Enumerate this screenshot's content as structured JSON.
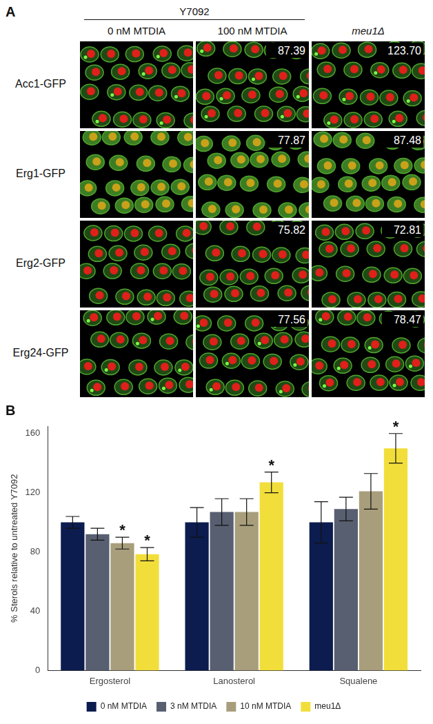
{
  "panel_a": {
    "label": "A",
    "group_header": "Y7092",
    "columns": [
      "0 nM MTDIA",
      "100 nM MTDIA",
      "meu1Δ"
    ],
    "rows": [
      {
        "label": "Acc1-GFP",
        "values": [
          null,
          "87.39",
          "123.70"
        ]
      },
      {
        "label": "Erg1-GFP",
        "values": [
          null,
          "77.87",
          "87.48"
        ]
      },
      {
        "label": "Erg2-GFP",
        "values": [
          null,
          "75.82",
          "72.81"
        ]
      },
      {
        "label": "Erg24-GFP",
        "values": [
          null,
          "77.56",
          "78.47"
        ]
      }
    ]
  },
  "chart_data": {
    "type": "bar",
    "panel_label": "B",
    "y_label": "% Sterols relative to untreated Y7092",
    "categories": [
      "Ergosterol",
      "Lanosterol",
      "Squalene"
    ],
    "series": [
      {
        "name": "0 nM MTDIA",
        "color": "#0c1c4e",
        "values": [
          100,
          100,
          100
        ],
        "errors": [
          4,
          10,
          14
        ]
      },
      {
        "name": "3 nM MTDIA",
        "color": "#585f70",
        "values": [
          92,
          107,
          109
        ],
        "errors": [
          4,
          9,
          8
        ]
      },
      {
        "name": "10 nM MTDIA",
        "color": "#a89e7c",
        "values": [
          86,
          107,
          121
        ],
        "errors": [
          4,
          9,
          12
        ]
      },
      {
        "name": "meu1Δ",
        "color": "#f2de3a",
        "values": [
          78.5,
          127,
          150
        ],
        "errors": [
          4.5,
          7,
          10
        ]
      }
    ],
    "annotations": [
      {
        "category": "Ergosterol",
        "series": "10 nM MTDIA",
        "text": "*"
      },
      {
        "category": "Ergosterol",
        "series": "meu1Δ",
        "text": "*"
      },
      {
        "category": "Lanosterol",
        "series": "meu1Δ",
        "text": "*"
      },
      {
        "category": "Squalene",
        "series": "meu1Δ",
        "text": "*"
      }
    ],
    "ylim": [
      0,
      165
    ],
    "yticks": [
      0,
      40,
      80,
      120,
      160
    ],
    "grid": false,
    "legend": "bottom"
  }
}
